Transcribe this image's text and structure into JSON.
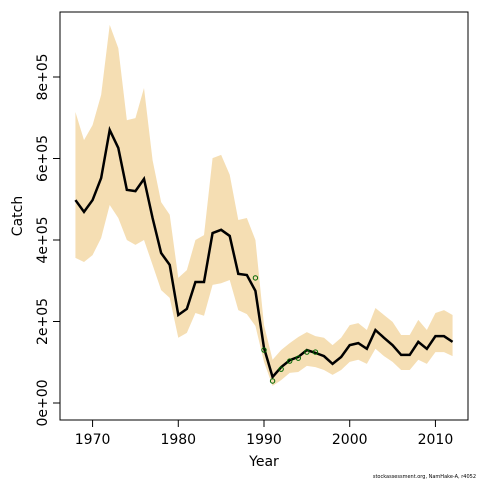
{
  "chart_data": {
    "type": "line",
    "xlabel": "Year",
    "ylabel": "Catch",
    "footnote": "stockassessment.org, NamHake-A, r4052",
    "x": [
      1968,
      1969,
      1970,
      1971,
      1972,
      1973,
      1974,
      1975,
      1976,
      1977,
      1978,
      1979,
      1980,
      1981,
      1982,
      1983,
      1984,
      1985,
      1986,
      1987,
      1988,
      1989,
      1990,
      1991,
      1992,
      1993,
      1994,
      1995,
      1996,
      1997,
      1998,
      1999,
      2000,
      2001,
      2002,
      2003,
      2004,
      2005,
      2006,
      2007,
      2008,
      2009,
      2010,
      2011,
      2012
    ],
    "series": [
      {
        "color": "#000000",
        "values": [
          498000,
          469000,
          498000,
          552000,
          670000,
          626000,
          523000,
          520000,
          550000,
          454000,
          368000,
          339000,
          216000,
          231000,
          297000,
          297000,
          417000,
          425000,
          410000,
          317000,
          314000,
          275000,
          135000,
          64000,
          88000,
          105000,
          113000,
          130000,
          123000,
          115000,
          96000,
          113000,
          142000,
          147000,
          133000,
          179000,
          160000,
          142000,
          118000,
          118000,
          150000,
          133000,
          164000,
          164000,
          150000
        ]
      }
    ],
    "band": {
      "color": "#f5deb3",
      "upper": [
        714000,
        645000,
        682000,
        756000,
        928000,
        871000,
        694000,
        699000,
        773000,
        596000,
        493000,
        462000,
        307000,
        326000,
        400000,
        412000,
        601000,
        609000,
        560000,
        449000,
        454000,
        400000,
        191000,
        106000,
        130000,
        147000,
        162000,
        174000,
        164000,
        160000,
        142000,
        160000,
        191000,
        196000,
        179000,
        233000,
        216000,
        199000,
        167000,
        167000,
        204000,
        179000,
        221000,
        228000,
        216000
      ],
      "lower": [
        356000,
        346000,
        363000,
        405000,
        486000,
        454000,
        400000,
        388000,
        400000,
        339000,
        277000,
        258000,
        160000,
        172000,
        221000,
        214000,
        290000,
        294000,
        302000,
        228000,
        218000,
        189000,
        101000,
        42000,
        56000,
        74000,
        76000,
        91000,
        88000,
        81000,
        69000,
        81000,
        101000,
        106000,
        96000,
        133000,
        115000,
        101000,
        81000,
        81000,
        106000,
        96000,
        125000,
        125000,
        115000
      ]
    },
    "points": {
      "color": "#006400",
      "x": [
        1989,
        1990,
        1991,
        1992,
        1993,
        1994,
        1995,
        1996
      ],
      "values": [
        307000,
        130000,
        54000,
        83000,
        103000,
        110000,
        125000,
        125000
      ]
    },
    "xlim": [
      1966.2,
      2013.8
    ],
    "ylim": [
      -41700,
      959500
    ],
    "xticks": [
      1970,
      1980,
      1990,
      2000,
      2010
    ],
    "yticks": [
      {
        "value": 0,
        "label": "0e+00"
      },
      {
        "value": 200000,
        "label": "2e+05"
      },
      {
        "value": 400000,
        "label": "4e+05"
      },
      {
        "value": 600000,
        "label": "6e+05"
      },
      {
        "value": 800000,
        "label": "8e+05"
      }
    ]
  }
}
